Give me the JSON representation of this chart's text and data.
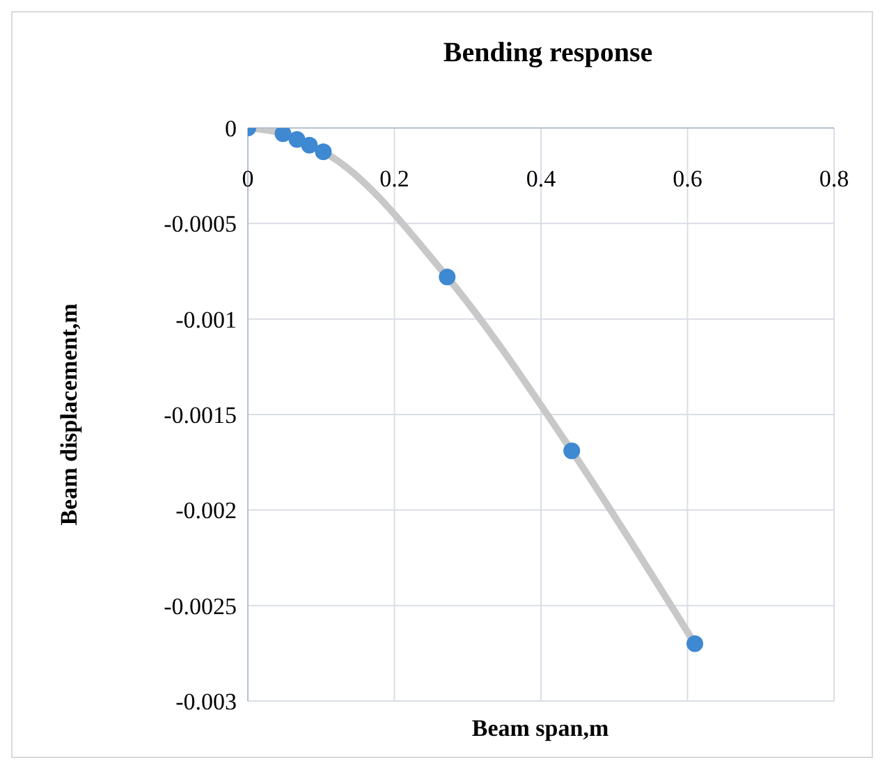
{
  "chart_data": {
    "type": "scatter",
    "title": "Bending response",
    "xlabel": "Beam span,m",
    "ylabel": "Beam displacement,m",
    "xlim": [
      0,
      0.8
    ],
    "xticks": [
      0,
      0.2,
      0.4,
      0.6,
      0.8
    ],
    "ylim": [
      -0.003,
      0
    ],
    "yticks": [
      -0.003,
      -0.0025,
      -0.002,
      -0.0015,
      -0.001,
      -0.0005,
      0
    ],
    "grid": true,
    "marker": "circle",
    "series": [
      {
        "type": "line",
        "color": "#c8c8c8",
        "x": [
          0,
          0.048,
          0.067,
          0.084,
          0.103,
          0.272,
          0.442,
          0.61
        ],
        "values": [
          0,
          -3e-05,
          -6e-05,
          -9e-05,
          -0.000125,
          -0.00078,
          -0.00169,
          -0.0027
        ],
        "marker": "none"
      },
      {
        "color": "#3f88d2",
        "x": [
          0,
          0.048,
          0.067,
          0.084,
          0.103,
          0.272,
          0.442,
          0.61
        ],
        "values": [
          0,
          -3e-05,
          -6e-05,
          -9e-05,
          -0.000125,
          -0.00078,
          -0.00169,
          -0.0027
        ]
      }
    ]
  }
}
